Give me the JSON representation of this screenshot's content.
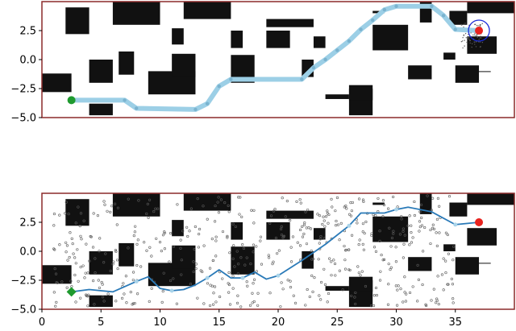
{
  "colors": {
    "frame": "#8b2a2a",
    "obstacle": "#111111",
    "path_light": "#9ccfe6",
    "path_dark": "#2a7ab8",
    "spline_node": "#aad4ea",
    "start": "#1f9a2f",
    "goal": "#e8231f",
    "goal_circle": "#1a2ad8",
    "scatter": "#5a5a5a"
  },
  "chart_data": [
    {
      "type": "scatter",
      "panel": "top",
      "xlim": [
        0,
        40
      ],
      "ylim": [
        -5,
        5
      ],
      "ytick_labels": [
        "2.5",
        "0.0",
        "−2.5",
        "−5.0"
      ],
      "yticks": [
        2.5,
        0.0,
        -2.5,
        -5.0
      ],
      "start": [
        2.5,
        -3.5
      ],
      "goal": [
        37,
        2.5
      ],
      "goal_circle_radius": 1,
      "path": [
        [
          2.5,
          -3.5
        ],
        [
          7,
          -3.5
        ],
        [
          8,
          -4.2
        ],
        [
          13,
          -4.3
        ],
        [
          14,
          -3.8
        ],
        [
          15,
          -2.3
        ],
        [
          16,
          -1.7
        ],
        [
          22,
          -1.7
        ],
        [
          23,
          -0.7
        ],
        [
          24,
          0
        ],
        [
          25,
          0.8
        ],
        [
          26,
          1.6
        ],
        [
          27,
          2.6
        ],
        [
          28,
          3.4
        ],
        [
          29,
          4.3
        ],
        [
          30,
          4.6
        ],
        [
          33,
          4.6
        ],
        [
          34,
          3.8
        ],
        [
          35,
          2.6
        ],
        [
          37,
          2.5
        ]
      ],
      "grid": false
    },
    {
      "type": "scatter",
      "panel": "bottom",
      "xlim": [
        0,
        40
      ],
      "ylim": [
        -5,
        5
      ],
      "xtick_labels": [
        "0",
        "5",
        "10",
        "15",
        "20",
        "25",
        "30",
        "35"
      ],
      "xticks": [
        0,
        5,
        10,
        15,
        20,
        25,
        30,
        35
      ],
      "ytick_labels": [
        "2.5",
        "0.0",
        "−2.5",
        "−5.0"
      ],
      "yticks": [
        2.5,
        0.0,
        -2.5,
        -5.0
      ],
      "start": [
        2.5,
        -3.5
      ],
      "goal": [
        37,
        2.5
      ],
      "path": [
        [
          2.5,
          -3.5
        ],
        [
          4,
          -3.3
        ],
        [
          6,
          -3.5
        ],
        [
          8,
          -2.6
        ],
        [
          9,
          -2.2
        ],
        [
          10,
          -3.2
        ],
        [
          11,
          -3.4
        ],
        [
          12,
          -3.3
        ],
        [
          13,
          -2.9
        ],
        [
          14,
          -2.3
        ],
        [
          15,
          -1.6
        ],
        [
          16,
          -2.3
        ],
        [
          17,
          -2.3
        ],
        [
          18,
          -1.8
        ],
        [
          19,
          -2.4
        ],
        [
          20,
          -2.1
        ],
        [
          22,
          -0.8
        ],
        [
          24,
          0.6
        ],
        [
          26,
          2.2
        ],
        [
          27,
          3.3
        ],
        [
          29,
          3.3
        ],
        [
          30,
          3.6
        ],
        [
          31,
          3.8
        ],
        [
          33,
          3.4
        ],
        [
          35,
          2.3
        ],
        [
          37,
          2.5
        ]
      ],
      "grid": false
    }
  ],
  "obstacles": [
    [
      2,
      2.2,
      4,
      4.5
    ],
    [
      6,
      3,
      10,
      5
    ],
    [
      11,
      1.3,
      12,
      2.7
    ],
    [
      12,
      3.5,
      16,
      5
    ],
    [
      16,
      1,
      17,
      2.5
    ],
    [
      23,
      1,
      24,
      2
    ],
    [
      28,
      0.8,
      31,
      3
    ],
    [
      19,
      1,
      21,
      2.5
    ],
    [
      28,
      4,
      29,
      4.2
    ],
    [
      26,
      -4.8,
      28,
      -2.2
    ],
    [
      22,
      -1.5,
      23,
      0
    ],
    [
      9,
      -3,
      13,
      -1
    ],
    [
      4,
      -2,
      6,
      0
    ],
    [
      11,
      -1.5,
      13,
      0.5
    ],
    [
      16,
      -2,
      18,
      0.4
    ],
    [
      0,
      -2.8,
      2.5,
      -1.2
    ],
    [
      26,
      -3.5,
      28,
      -2.5
    ],
    [
      24,
      -3.4,
      26,
      -3
    ],
    [
      31,
      -1.7,
      33,
      -0.5
    ],
    [
      36,
      -0.6,
      38,
      -1
    ],
    [
      34,
      0,
      35,
      0.6
    ],
    [
      35,
      -2,
      37,
      -0.5
    ],
    [
      36,
      0.5,
      38.5,
      2
    ],
    [
      34.5,
      3,
      36,
      4.2
    ],
    [
      32,
      3.2,
      33,
      5
    ],
    [
      36,
      4,
      40,
      5
    ],
    [
      19,
      2.8,
      23,
      3.5
    ],
    [
      6.5,
      -1.3,
      7.8,
      0.7
    ],
    [
      4,
      -4.8,
      6,
      -3.8
    ]
  ]
}
